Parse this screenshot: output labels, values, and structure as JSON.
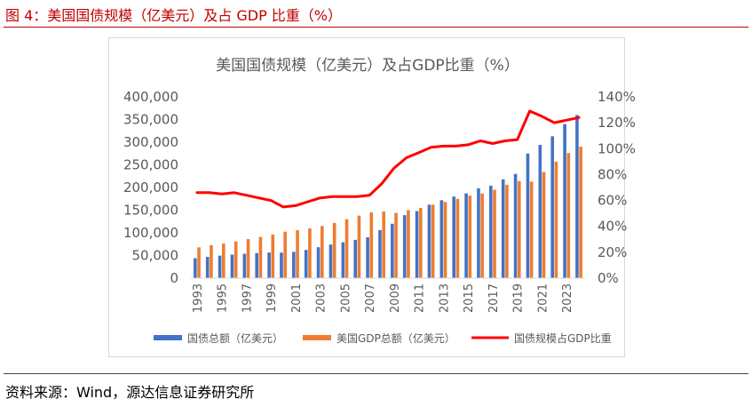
{
  "figure": {
    "title": "图 4：美国国债规模（亿美元）及占 GDP 比重（%）",
    "source": "资料来源：Wind，源达信息证券研究所"
  },
  "chart_data": {
    "type": "bar",
    "title": "美国国债规模（亿美元）及占GDP比重（%）",
    "categories": [
      "1993",
      "1994",
      "1995",
      "1996",
      "1997",
      "1998",
      "1999",
      "2000",
      "2001",
      "2002",
      "2003",
      "2004",
      "2005",
      "2006",
      "2007",
      "2008",
      "2009",
      "2010",
      "2011",
      "2012",
      "2013",
      "2014",
      "2015",
      "2016",
      "2017",
      "2018",
      "2019",
      "2020",
      "2021",
      "2022",
      "2023",
      "2024"
    ],
    "x_tick_labels": [
      "1993",
      "1995",
      "1997",
      "1999",
      "2001",
      "2003",
      "2005",
      "2007",
      "2009",
      "2011",
      "2013",
      "2015",
      "2017",
      "2019",
      "2021",
      "2023"
    ],
    "ylim": [
      0,
      400000
    ],
    "y_ticks": [
      "0",
      "50,000",
      "100,000",
      "150,000",
      "200,000",
      "250,000",
      "300,000",
      "350,000",
      "400,000"
    ],
    "y2lim": [
      0,
      140
    ],
    "y2_ticks": [
      "0%",
      "20%",
      "40%",
      "60%",
      "80%",
      "100%",
      "120%",
      "140%"
    ],
    "series": [
      {
        "name": "国债总额（亿美元）",
        "type": "bar",
        "color": "#4472c4",
        "values": [
          44000,
          47000,
          49700,
          52000,
          53700,
          55300,
          56600,
          56300,
          58100,
          62300,
          68300,
          74100,
          79100,
          84500,
          90200,
          106000,
          120000,
          139000,
          148000,
          162000,
          172000,
          180000,
          187000,
          198000,
          204000,
          218000,
          230000,
          275000,
          294000,
          313000,
          340000,
          360000
        ]
      },
      {
        "name": "美国GDP总额（亿美元）",
        "type": "bar",
        "color": "#ed7d31",
        "values": [
          68000,
          72800,
          76400,
          81000,
          86100,
          90900,
          96300,
          102500,
          105800,
          109800,
          115000,
          122000,
          130000,
          138000,
          145000,
          147000,
          144000,
          150000,
          155000,
          162000,
          168000,
          175000,
          182000,
          187000,
          195000,
          206000,
          214000,
          213000,
          234000,
          257000,
          276000,
          290000
        ]
      },
      {
        "name": "国债规模占GDP比重",
        "type": "line",
        "color": "#ff0000",
        "axis": "right",
        "values": [
          66,
          66,
          65,
          66,
          64,
          62,
          60,
          55,
          56,
          59,
          62,
          63,
          63,
          63,
          64,
          73,
          85,
          93,
          97,
          101,
          102,
          102,
          103,
          106,
          104,
          106,
          107,
          129,
          125,
          120,
          122,
          124
        ]
      }
    ],
    "legend_position": "bottom",
    "grid": false
  }
}
